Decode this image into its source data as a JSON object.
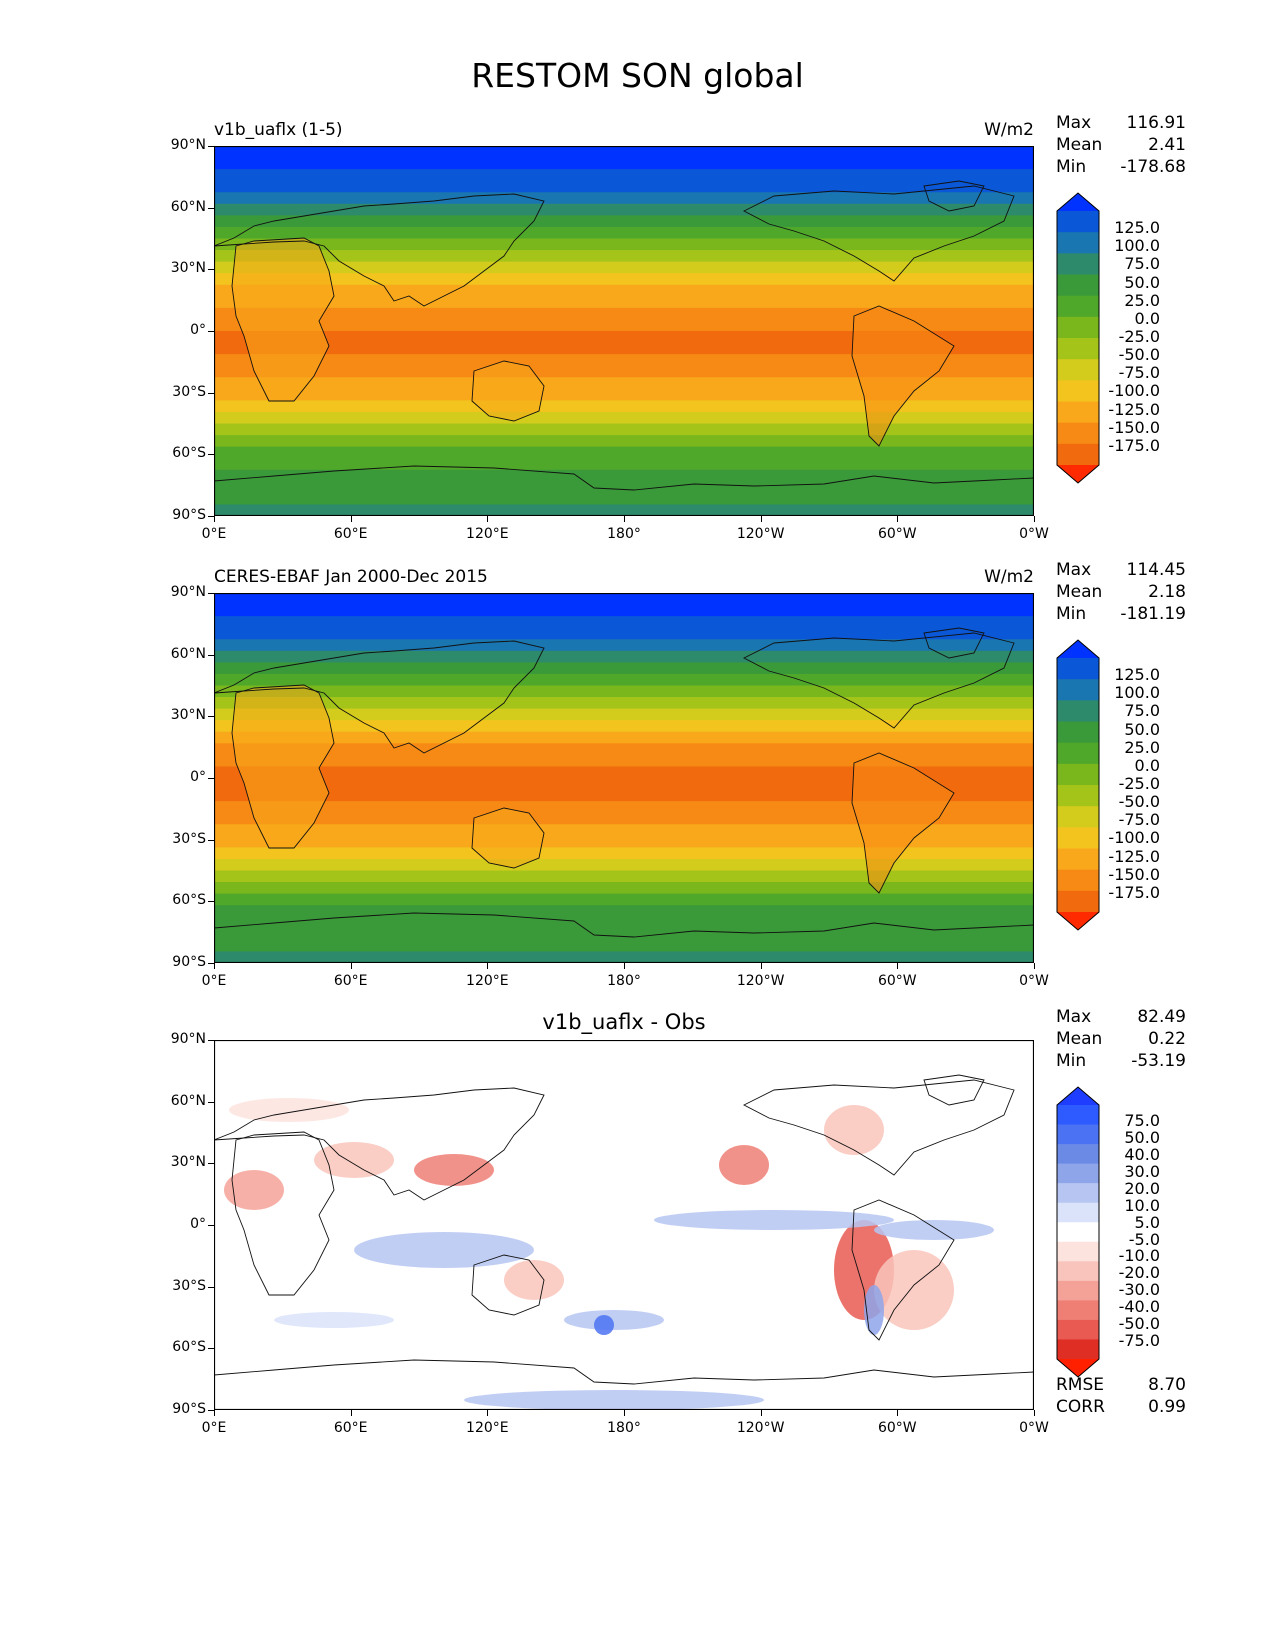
{
  "figure_title": "RESTOM SON global",
  "panels": [
    {
      "title_left": "v1b_uaflx (1-5)",
      "title_right": "W/m2",
      "title_center": "",
      "stats": [
        [
          "Max",
          "116.91"
        ],
        [
          "Mean",
          "2.41"
        ],
        [
          "Min",
          "-178.68"
        ]
      ],
      "colorbar_labels": [
        "125.0",
        "100.0",
        "75.0",
        "50.0",
        "25.0",
        "0.0",
        "-25.0",
        "-50.0",
        "-75.0",
        "-100.0",
        "-125.0",
        "-150.0",
        "-175.0"
      ],
      "colormap": "sequential"
    },
    {
      "title_left": "CERES-EBAF Jan 2000-Dec 2015",
      "title_right": "W/m2",
      "title_center": "",
      "stats": [
        [
          "Max",
          "114.45"
        ],
        [
          "Mean",
          "2.18"
        ],
        [
          "Min",
          "-181.19"
        ]
      ],
      "colorbar_labels": [
        "125.0",
        "100.0",
        "75.0",
        "50.0",
        "25.0",
        "0.0",
        "-25.0",
        "-50.0",
        "-75.0",
        "-100.0",
        "-125.0",
        "-150.0",
        "-175.0"
      ],
      "colormap": "sequential"
    },
    {
      "title_left": "",
      "title_right": "",
      "title_center": "v1b_uaflx - Obs",
      "stats": [
        [
          "Max",
          "82.49"
        ],
        [
          "Mean",
          "0.22"
        ],
        [
          "Min",
          "-53.19"
        ]
      ],
      "colorbar_labels": [
        "75.0",
        "50.0",
        "40.0",
        "30.0",
        "20.0",
        "10.0",
        "5.0",
        "-5.0",
        "-10.0",
        "-20.0",
        "-30.0",
        "-40.0",
        "-50.0",
        "-75.0"
      ],
      "colormap": "diverging",
      "extra_stats": [
        [
          "RMSE",
          "8.70"
        ],
        [
          "CORR",
          "0.99"
        ]
      ]
    }
  ],
  "y_ticks": [
    "90°N",
    "60°N",
    "30°N",
    "0°",
    "30°S",
    "60°S",
    "90°S"
  ],
  "x_ticks": [
    "0°E",
    "60°E",
    "120°E",
    "180°",
    "120°W",
    "60°W",
    "0°W"
  ],
  "colors": {
    "sequential": [
      "#0033ff",
      "#0a58d8",
      "#1a76b0",
      "#2d8a6a",
      "#3a9a3a",
      "#4fa82a",
      "#79b71d",
      "#a4c41a",
      "#d3cc1c",
      "#f3c41e",
      "#f8a81a",
      "#f78a14",
      "#f26a0e",
      "#ff2a00"
    ],
    "diverging": [
      "#1f3dff",
      "#2e5bff",
      "#4b72f2",
      "#6a8ae6",
      "#8ea5ea",
      "#b6c5f2",
      "#dbe3fa",
      "#ffffff",
      "#fde3de",
      "#f9c4bb",
      "#f4a298",
      "#ef7f75",
      "#e85a52",
      "#df2f25",
      "#ff2000"
    ]
  }
}
